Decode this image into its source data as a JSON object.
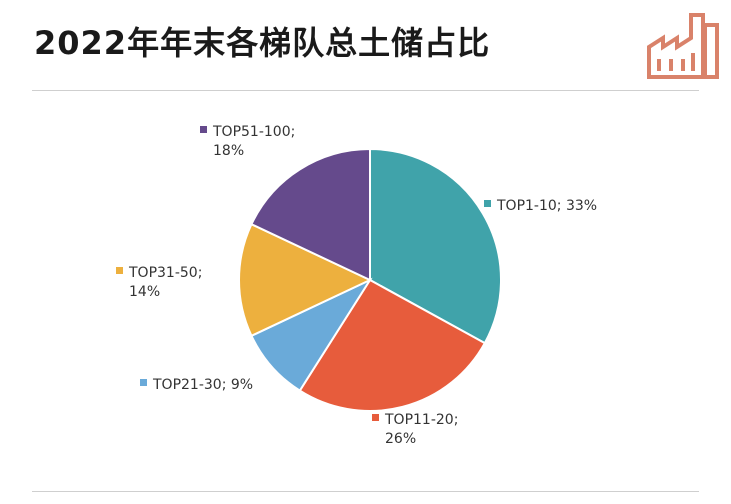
{
  "colors": {
    "accent": "#d9826a"
  },
  "icons": {
    "logo": "factory-icon"
  },
  "chart_data": {
    "type": "pie",
    "title": "2022年年末各梯队总土储占比",
    "categories": [
      "TOP1-10",
      "TOP11-20",
      "TOP21-30",
      "TOP31-50",
      "TOP51-100"
    ],
    "values": [
      33,
      26,
      9,
      14,
      18
    ],
    "colors": [
      "#40a3aa",
      "#e75c3c",
      "#6aaad9",
      "#edb03e",
      "#654a8c"
    ],
    "labels": [
      {
        "line1": "TOP1-10; 33%",
        "line2": ""
      },
      {
        "line1": "TOP11-20;",
        "line2": "26%"
      },
      {
        "line1": "TOP21-30; 9%",
        "line2": ""
      },
      {
        "line1": "TOP31-50;",
        "line2": "14%"
      },
      {
        "line1": "TOP51-100;",
        "line2": "18%"
      }
    ],
    "legend": "none"
  }
}
